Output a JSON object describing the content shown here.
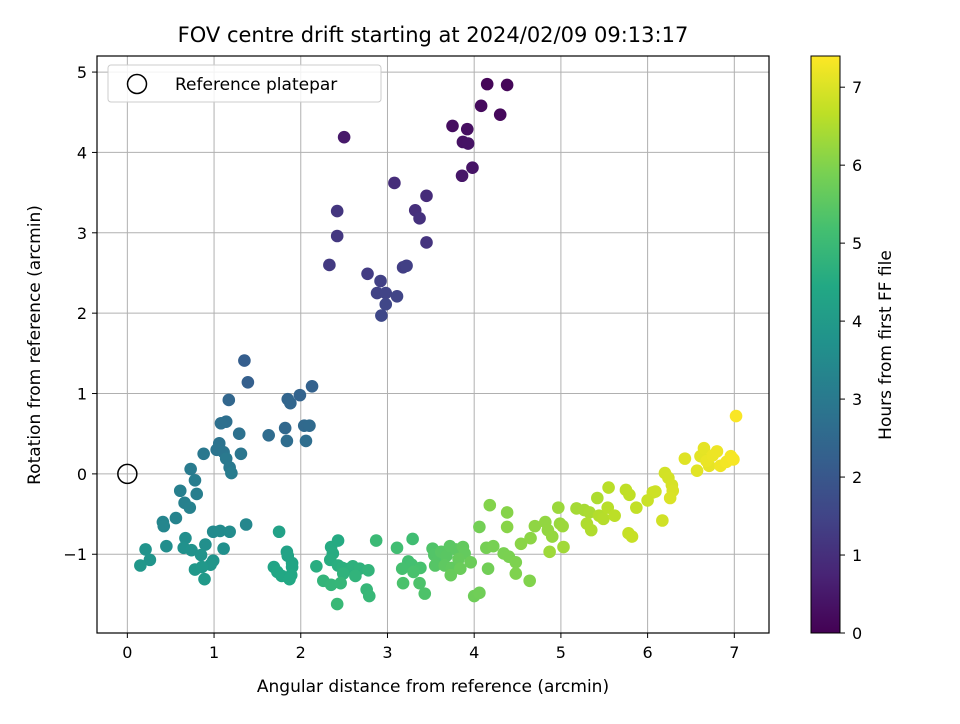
{
  "chart_data": {
    "type": "scatter",
    "title": "FOV centre drift starting at 2024/02/09 09:13:17",
    "xlabel": "Angular distance from reference (arcmin)",
    "ylabel": "Rotation from reference (arcmin)",
    "xlim": [
      -0.35,
      7.4
    ],
    "ylim": [
      -1.98,
      5.2
    ],
    "xticks": [
      "0",
      "1",
      "2",
      "3",
      "4",
      "5",
      "6",
      "7"
    ],
    "yticks": [
      "−1",
      "0",
      "1",
      "2",
      "3",
      "4",
      "5"
    ],
    "grid": true,
    "legend": {
      "placement": "top-left",
      "entries": [
        "Reference platepar"
      ]
    },
    "reference_point": {
      "x": 0,
      "y": 0
    },
    "colorbar": {
      "label": "Hours from first FF file",
      "range": [
        0,
        7.4
      ],
      "ticks": [
        "0",
        "1",
        "2",
        "3",
        "4",
        "5",
        "6",
        "7"
      ],
      "colormap": "viridis"
    },
    "points": [
      [
        4.15,
        4.85,
        0.1
      ],
      [
        4.38,
        4.84,
        0.12
      ],
      [
        4.3,
        4.47,
        0.15
      ],
      [
        4.08,
        4.58,
        0.2
      ],
      [
        3.75,
        4.33,
        0.25
      ],
      [
        3.92,
        4.29,
        0.3
      ],
      [
        3.87,
        4.13,
        0.35
      ],
      [
        3.93,
        4.11,
        0.38
      ],
      [
        3.98,
        3.81,
        0.4
      ],
      [
        3.86,
        3.71,
        0.45
      ],
      [
        2.5,
        4.19,
        0.5
      ],
      [
        3.45,
        3.46,
        0.9
      ],
      [
        3.08,
        3.62,
        0.95
      ],
      [
        3.32,
        3.28,
        1.0
      ],
      [
        3.37,
        3.18,
        1.05
      ],
      [
        3.45,
        2.88,
        1.1
      ],
      [
        2.42,
        3.27,
        1.15
      ],
      [
        2.42,
        2.96,
        1.2
      ],
      [
        2.33,
        2.6,
        1.25
      ],
      [
        2.77,
        2.49,
        1.3
      ],
      [
        3.18,
        2.57,
        1.35
      ],
      [
        3.22,
        2.59,
        1.38
      ],
      [
        2.92,
        2.4,
        1.4
      ],
      [
        2.88,
        2.25,
        1.45
      ],
      [
        2.98,
        2.25,
        1.48
      ],
      [
        3.11,
        2.21,
        1.5
      ],
      [
        2.98,
        2.11,
        1.55
      ],
      [
        2.93,
        1.97,
        1.6
      ],
      [
        1.35,
        1.41,
        2.2
      ],
      [
        1.39,
        1.14,
        2.25
      ],
      [
        2.13,
        1.09,
        2.3
      ],
      [
        1.99,
        0.98,
        2.35
      ],
      [
        1.85,
        0.93,
        2.4
      ],
      [
        1.88,
        0.88,
        2.42
      ],
      [
        1.17,
        0.92,
        2.45
      ],
      [
        1.82,
        0.57,
        2.5
      ],
      [
        2.04,
        0.6,
        2.52
      ],
      [
        2.1,
        0.6,
        2.55
      ],
      [
        1.63,
        0.48,
        2.6
      ],
      [
        1.84,
        0.41,
        2.62
      ],
      [
        2.06,
        0.41,
        2.65
      ],
      [
        1.14,
        0.65,
        2.7
      ],
      [
        1.08,
        0.63,
        2.72
      ],
      [
        1.29,
        0.5,
        2.75
      ],
      [
        1.06,
        0.38,
        2.8
      ],
      [
        1.03,
        0.3,
        2.85
      ],
      [
        1.11,
        0.27,
        2.88
      ],
      [
        1.31,
        0.25,
        2.9
      ],
      [
        0.88,
        0.25,
        2.95
      ],
      [
        1.14,
        0.19,
        2.98
      ],
      [
        1.18,
        0.08,
        3.0
      ],
      [
        0.73,
        0.06,
        3.05
      ],
      [
        1.2,
        0.01,
        3.08
      ],
      [
        0.78,
        -0.08,
        3.1
      ],
      [
        0.8,
        -0.25,
        3.15
      ],
      [
        0.61,
        -0.21,
        3.18
      ],
      [
        0.66,
        -0.36,
        3.2
      ],
      [
        0.72,
        -0.42,
        3.22
      ],
      [
        0.56,
        -0.55,
        3.3
      ],
      [
        0.41,
        -0.6,
        3.35
      ],
      [
        0.42,
        -0.65,
        3.38
      ],
      [
        1.37,
        -0.63,
        3.4
      ],
      [
        0.99,
        -0.72,
        3.5
      ],
      [
        1.07,
        -0.71,
        3.52
      ],
      [
        1.18,
        -0.72,
        3.55
      ],
      [
        0.67,
        -0.8,
        3.6
      ],
      [
        0.45,
        -0.9,
        3.62
      ],
      [
        0.9,
        -0.88,
        3.65
      ],
      [
        1.11,
        -0.93,
        3.68
      ],
      [
        0.65,
        -0.92,
        3.7
      ],
      [
        0.74,
        -0.95,
        3.72
      ],
      [
        0.85,
        -1.01,
        3.75
      ],
      [
        0.21,
        -0.94,
        3.78
      ],
      [
        0.99,
        -1.08,
        3.8
      ],
      [
        0.26,
        -1.07,
        3.82
      ],
      [
        0.96,
        -1.13,
        3.85
      ],
      [
        0.15,
        -1.14,
        3.88
      ],
      [
        0.78,
        -1.19,
        3.9
      ],
      [
        0.86,
        -1.16,
        3.92
      ],
      [
        0.89,
        -1.31,
        3.95
      ],
      [
        1.75,
        -0.72,
        4.2
      ],
      [
        1.84,
        -0.97,
        4.25
      ],
      [
        1.85,
        -1.02,
        4.28
      ],
      [
        1.69,
        -1.16,
        4.3
      ],
      [
        1.9,
        -1.11,
        4.32
      ],
      [
        1.9,
        -1.16,
        4.35
      ],
      [
        1.73,
        -1.22,
        4.38
      ],
      [
        1.78,
        -1.27,
        4.4
      ],
      [
        1.89,
        -1.26,
        4.42
      ],
      [
        1.87,
        -1.31,
        4.45
      ],
      [
        2.43,
        -0.83,
        4.5
      ],
      [
        2.35,
        -0.91,
        4.52
      ],
      [
        2.37,
        -0.99,
        4.55
      ],
      [
        2.34,
        -1.07,
        4.58
      ],
      [
        2.18,
        -1.15,
        4.6
      ],
      [
        2.43,
        -1.14,
        4.62
      ],
      [
        2.48,
        -1.17,
        4.65
      ],
      [
        2.56,
        -1.18,
        4.68
      ],
      [
        2.6,
        -1.15,
        4.7
      ],
      [
        2.68,
        -1.18,
        4.72
      ],
      [
        2.49,
        -1.24,
        4.75
      ],
      [
        2.63,
        -1.27,
        4.78
      ],
      [
        2.78,
        -1.2,
        4.8
      ],
      [
        2.26,
        -1.33,
        4.82
      ],
      [
        2.35,
        -1.38,
        4.85
      ],
      [
        2.46,
        -1.36,
        4.88
      ],
      [
        2.76,
        -1.44,
        4.9
      ],
      [
        2.79,
        -1.52,
        4.92
      ],
      [
        2.42,
        -1.62,
        4.95
      ],
      [
        2.87,
        -0.83,
        4.98
      ],
      [
        3.29,
        -0.81,
        5.1
      ],
      [
        3.11,
        -0.92,
        5.12
      ],
      [
        3.24,
        -1.09,
        5.15
      ],
      [
        3.28,
        -1.13,
        5.18
      ],
      [
        3.17,
        -1.18,
        5.2
      ],
      [
        3.38,
        -1.17,
        5.22
      ],
      [
        3.3,
        -1.22,
        5.25
      ],
      [
        3.18,
        -1.36,
        5.28
      ],
      [
        3.37,
        -1.36,
        5.3
      ],
      [
        3.43,
        -1.49,
        5.32
      ],
      [
        3.52,
        -0.93,
        5.35
      ],
      [
        3.54,
        -1.01,
        5.38
      ],
      [
        3.58,
        -1.08,
        5.4
      ],
      [
        3.55,
        -1.14,
        5.42
      ],
      [
        3.62,
        -0.97,
        5.45
      ],
      [
        3.68,
        -1.02,
        5.48
      ],
      [
        3.72,
        -0.9,
        5.5
      ],
      [
        3.79,
        -0.94,
        5.52
      ],
      [
        3.66,
        -1.14,
        5.55
      ],
      [
        3.74,
        -1.17,
        5.58
      ],
      [
        3.87,
        -0.91,
        5.6
      ],
      [
        3.89,
        -0.99,
        5.62
      ],
      [
        3.82,
        -1.06,
        5.65
      ],
      [
        3.73,
        -1.26,
        5.68
      ],
      [
        3.84,
        -1.18,
        5.7
      ],
      [
        3.96,
        -1.1,
        5.72
      ],
      [
        4.0,
        -1.52,
        5.75
      ],
      [
        4.06,
        -1.48,
        5.78
      ],
      [
        4.16,
        -1.18,
        5.8
      ],
      [
        4.06,
        -0.66,
        5.82
      ],
      [
        4.14,
        -0.92,
        5.85
      ],
      [
        4.22,
        -0.9,
        5.88
      ],
      [
        4.34,
        -0.99,
        5.9
      ],
      [
        4.4,
        -1.03,
        5.92
      ],
      [
        4.48,
        -1.1,
        5.95
      ],
      [
        4.48,
        -1.24,
        5.98
      ],
      [
        4.64,
        -1.33,
        6.0
      ],
      [
        4.18,
        -0.39,
        6.02
      ],
      [
        4.38,
        -0.48,
        6.05
      ],
      [
        4.38,
        -0.66,
        6.08
      ],
      [
        4.54,
        -0.87,
        6.1
      ],
      [
        4.65,
        -0.8,
        6.12
      ],
      [
        4.7,
        -0.65,
        6.15
      ],
      [
        4.82,
        -0.6,
        6.18
      ],
      [
        4.85,
        -0.7,
        6.2
      ],
      [
        4.9,
        -0.78,
        6.22
      ],
      [
        4.99,
        -0.62,
        6.25
      ],
      [
        4.97,
        -0.42,
        6.28
      ],
      [
        5.02,
        -0.65,
        6.3
      ],
      [
        4.87,
        -0.97,
        6.32
      ],
      [
        5.03,
        -0.91,
        6.35
      ],
      [
        5.18,
        -0.43,
        6.4
      ],
      [
        5.27,
        -0.45,
        6.42
      ],
      [
        5.33,
        -0.48,
        6.45
      ],
      [
        5.42,
        -0.3,
        6.48
      ],
      [
        5.3,
        -0.62,
        6.5
      ],
      [
        5.35,
        -0.7,
        6.52
      ],
      [
        5.44,
        -0.52,
        6.55
      ],
      [
        5.49,
        -0.56,
        6.58
      ],
      [
        5.54,
        -0.42,
        6.6
      ],
      [
        5.55,
        -0.17,
        6.62
      ],
      [
        5.62,
        -0.52,
        6.65
      ],
      [
        5.75,
        -0.2,
        6.68
      ],
      [
        5.79,
        -0.26,
        6.7
      ],
      [
        5.87,
        -0.42,
        6.72
      ],
      [
        5.78,
        -0.74,
        6.75
      ],
      [
        5.82,
        -0.78,
        6.78
      ],
      [
        6.0,
        -0.33,
        6.8
      ],
      [
        6.06,
        -0.23,
        6.82
      ],
      [
        6.09,
        -0.22,
        6.85
      ],
      [
        6.17,
        -0.58,
        6.88
      ],
      [
        6.2,
        0.01,
        6.9
      ],
      [
        6.24,
        -0.05,
        6.92
      ],
      [
        6.28,
        -0.14,
        6.95
      ],
      [
        6.29,
        -0.21,
        6.98
      ],
      [
        6.26,
        -0.3,
        7.0
      ],
      [
        6.43,
        0.19,
        7.05
      ],
      [
        6.57,
        0.04,
        7.08
      ],
      [
        6.61,
        0.22,
        7.1
      ],
      [
        6.65,
        0.32,
        7.12
      ],
      [
        6.71,
        0.1,
        7.15
      ],
      [
        6.68,
        0.16,
        7.18
      ],
      [
        6.75,
        0.23,
        7.2
      ],
      [
        6.8,
        0.28,
        7.22
      ],
      [
        6.84,
        0.1,
        7.25
      ],
      [
        6.91,
        0.15,
        7.28
      ],
      [
        6.96,
        0.22,
        7.3
      ],
      [
        6.99,
        0.18,
        7.32
      ],
      [
        7.02,
        0.72,
        7.35
      ]
    ]
  }
}
